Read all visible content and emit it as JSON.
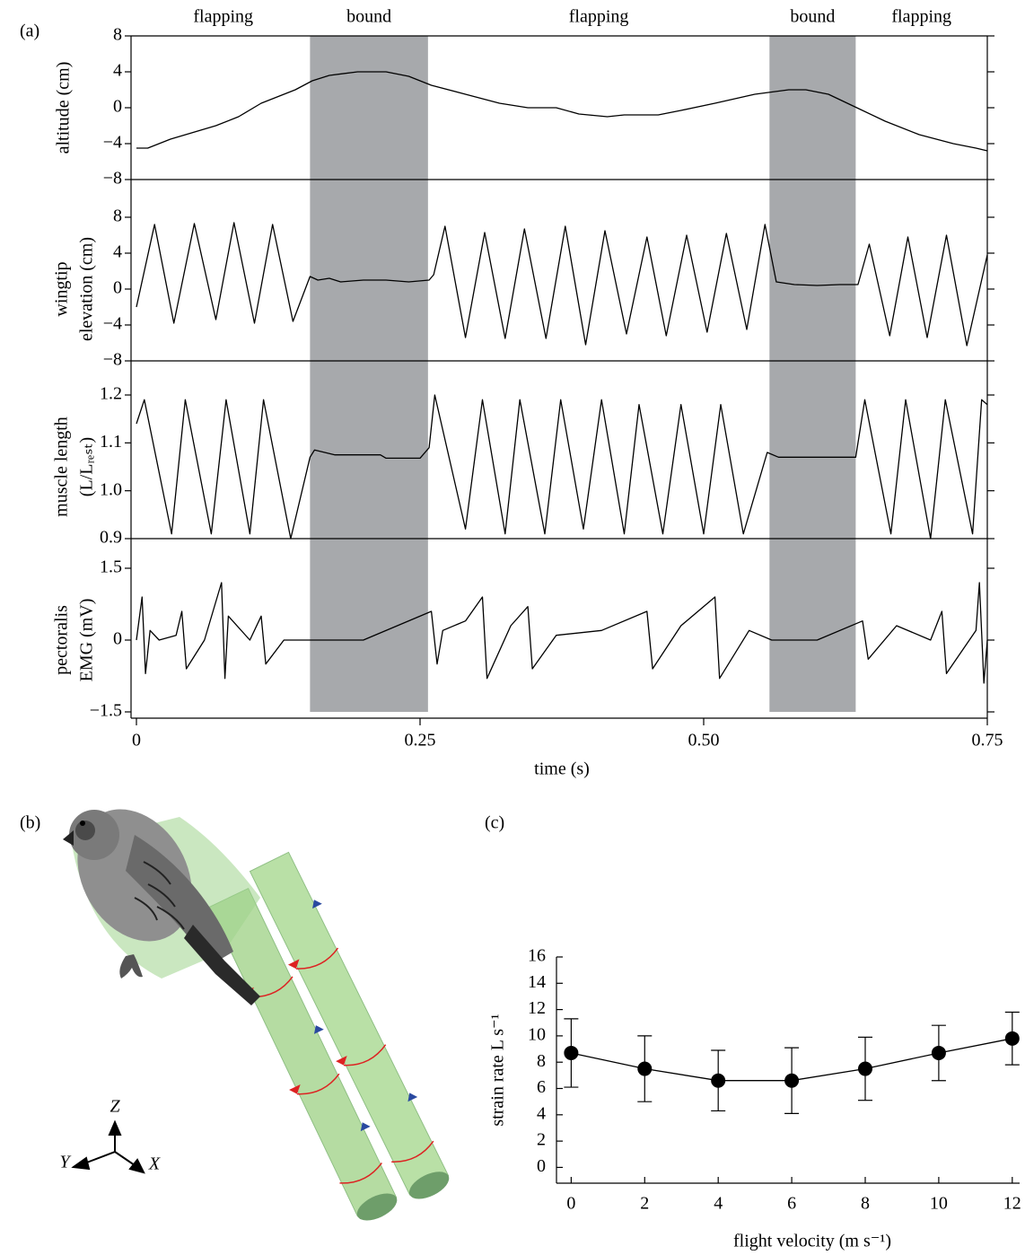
{
  "chart_data": [
    {
      "type": "line",
      "panel": "(a)",
      "xlabel": "time (s)",
      "xlim": [
        0,
        0.75
      ],
      "xticks": [
        0,
        0.25,
        {
          "value": 0.5,
          "label": "0.50"
        },
        0.75
      ],
      "shade_color": "#a7a9ac",
      "phases": [
        {
          "label": "flapping",
          "span": [
            0,
            0.153
          ],
          "shaded": false
        },
        {
          "label": "bound",
          "span": [
            0.153,
            0.257
          ],
          "shaded": true
        },
        {
          "label": "flapping",
          "span": [
            0.257,
            0.558
          ],
          "shaded": false
        },
        {
          "label": "bound",
          "span": [
            0.558,
            0.634
          ],
          "shaded": true
        },
        {
          "label": "flapping",
          "span": [
            0.634,
            0.75
          ],
          "shaded": false
        }
      ],
      "subplots": [
        {
          "ylabel": [
            "altitude (cm)"
          ],
          "ylim": [
            -8,
            8
          ],
          "yticks": [
            {
              "value": -8,
              "label": "−8"
            },
            {
              "value": -4,
              "label": "−4"
            },
            0,
            4,
            8
          ],
          "series": [
            {
              "color": "#000000",
              "x": [
                0,
                0.01,
                0.03,
                0.07,
                0.09,
                0.11,
                0.14,
                0.155,
                0.17,
                0.195,
                0.22,
                0.24,
                0.26,
                0.29,
                0.32,
                0.345,
                0.37,
                0.39,
                0.415,
                0.43,
                0.46,
                0.48,
                0.51,
                0.545,
                0.575,
                0.59,
                0.61,
                0.635,
                0.66,
                0.69,
                0.72,
                0.74,
                0.75
              ],
              "values": [
                -4.5,
                -4.5,
                -3.5,
                -2,
                -1,
                0.5,
                2,
                3,
                3.6,
                4,
                4,
                3.5,
                2.5,
                1.5,
                0.5,
                0,
                0,
                -0.7,
                -1,
                -0.8,
                -0.8,
                -0.3,
                0.5,
                1.5,
                2,
                2,
                1.5,
                0,
                -1.5,
                -3,
                -4,
                -4.5,
                -4.8
              ]
            }
          ]
        },
        {
          "ylabel": [
            "wingtip",
            "elevation (cm)"
          ],
          "ylim": [
            -8,
            8
          ],
          "yticks": [
            {
              "value": -8,
              "label": "−8"
            },
            {
              "value": -4,
              "label": "−4"
            },
            0,
            4,
            8
          ],
          "series": [
            {
              "color": "#000000",
              "x": [
                0,
                0.016,
                0.033,
                0.051,
                0.07,
                0.086,
                0.104,
                0.12,
                0.138,
                0.153,
                0.16,
                0.17,
                0.18,
                0.2,
                0.22,
                0.24,
                0.258,
                0.262,
                0.272,
                0.29,
                0.307,
                0.325,
                0.342,
                0.361,
                0.378,
                0.396,
                0.413,
                0.432,
                0.45,
                0.467,
                0.485,
                0.503,
                0.52,
                0.538,
                0.554,
                0.564,
                0.58,
                0.6,
                0.62,
                0.636,
                0.646,
                0.664,
                0.68,
                0.697,
                0.714,
                0.732,
                0.75
              ],
              "values": [
                -2,
                7.2,
                -3.8,
                7.3,
                -3.4,
                7.4,
                -3.8,
                7.2,
                -3.6,
                1.4,
                1.0,
                1.2,
                0.8,
                1.0,
                1.0,
                0.8,
                1.0,
                1.6,
                7.0,
                -5.4,
                6.3,
                -5.5,
                6.7,
                -5.5,
                7.0,
                -6.2,
                6.5,
                -5.0,
                5.8,
                -5.2,
                6.0,
                -4.8,
                6.2,
                -4.5,
                7.2,
                0.8,
                0.5,
                0.4,
                0.5,
                0.5,
                5.0,
                -5.2,
                5.8,
                -5.4,
                6.0,
                -6.3,
                3.8
              ]
            }
          ]
        },
        {
          "ylabel": [
            "muscle length",
            "(L/Lᵣₑₛₜ)"
          ],
          "ylim": [
            0.9,
            1.2
          ],
          "yticks": [
            0.9,
            {
              "value": 1.0,
              "label": "1.0"
            },
            1.1,
            1.2
          ],
          "series": [
            {
              "color": "#000000",
              "x": [
                0,
                0.007,
                0.031,
                0.043,
                0.066,
                0.079,
                0.1,
                0.112,
                0.136,
                0.153,
                0.157,
                0.175,
                0.215,
                0.22,
                0.25,
                0.258,
                0.263,
                0.29,
                0.305,
                0.325,
                0.338,
                0.36,
                0.374,
                0.394,
                0.41,
                0.43,
                0.443,
                0.464,
                0.48,
                0.5,
                0.515,
                0.535,
                0.556,
                0.566,
                0.634,
                0.642,
                0.665,
                0.678,
                0.7,
                0.713,
                0.737,
                0.745,
                0.75
              ],
              "values": [
                1.14,
                1.19,
                0.91,
                1.19,
                0.91,
                1.19,
                0.91,
                1.19,
                0.9,
                1.07,
                1.085,
                1.075,
                1.075,
                1.068,
                1.068,
                1.09,
                1.2,
                0.92,
                1.19,
                0.91,
                1.19,
                0.91,
                1.19,
                0.92,
                1.19,
                0.91,
                1.18,
                0.91,
                1.18,
                0.91,
                1.18,
                0.91,
                1.08,
                1.07,
                1.07,
                1.19,
                0.91,
                1.19,
                0.9,
                1.19,
                0.91,
                1.19,
                1.18
              ]
            }
          ]
        },
        {
          "ylabel": [
            "pectoralis",
            "EMG (mV)"
          ],
          "ylim": [
            -1.5,
            1.5
          ],
          "yticks": [
            {
              "value": -1.5,
              "label": "−1.5"
            },
            0,
            1.5
          ],
          "series": [
            {
              "color": "#000000",
              "x": [
                0,
                0.005,
                0.008,
                0.012,
                0.02,
                0.035,
                0.04,
                0.044,
                0.06,
                0.075,
                0.078,
                0.081,
                0.1,
                0.11,
                0.114,
                0.13,
                0.15,
                0.2,
                0.26,
                0.265,
                0.27,
                0.29,
                0.305,
                0.309,
                0.33,
                0.345,
                0.349,
                0.37,
                0.41,
                0.45,
                0.455,
                0.48,
                0.51,
                0.514,
                0.54,
                0.56,
                0.6,
                0.64,
                0.645,
                0.67,
                0.7,
                0.71,
                0.714,
                0.74,
                0.743,
                0.747,
                0.75
              ],
              "values": [
                0,
                0.9,
                -0.7,
                0.2,
                0,
                0.1,
                0.6,
                -0.6,
                0,
                1.2,
                -0.8,
                0.5,
                0,
                0.5,
                -0.5,
                0,
                0,
                0,
                0.6,
                -0.5,
                0.2,
                0.4,
                0.9,
                -0.8,
                0.3,
                0.7,
                -0.6,
                0.1,
                0.2,
                0.6,
                -0.6,
                0.3,
                0.9,
                -0.8,
                0.2,
                0,
                0,
                0.4,
                -0.4,
                0.3,
                0,
                0.6,
                -0.7,
                0.2,
                1.2,
                -0.9,
                0
              ]
            }
          ]
        }
      ]
    },
    {
      "type": "errorbar",
      "panel": "(c)",
      "xlabel": "flight velocity (m s⁻¹)",
      "ylabel": "strain rate L s⁻¹",
      "xlim": [
        -0.4,
        12.2
      ],
      "xticks": [
        0,
        2,
        4,
        6,
        8,
        10,
        12
      ],
      "ylim": [
        -1.2,
        16
      ],
      "yticks": [
        0,
        2,
        4,
        6,
        8,
        10,
        12,
        14,
        16
      ],
      "color": "#000000",
      "x": [
        0,
        2,
        4,
        6,
        8,
        10,
        12
      ],
      "values": [
        8.7,
        7.5,
        6.6,
        6.6,
        7.5,
        8.7,
        9.8
      ],
      "errors": [
        2.6,
        2.5,
        2.3,
        2.5,
        2.4,
        2.1,
        2.0
      ]
    }
  ],
  "illustration": {
    "panel": "(b)",
    "axes": [
      "Z",
      "Y",
      "X"
    ]
  }
}
